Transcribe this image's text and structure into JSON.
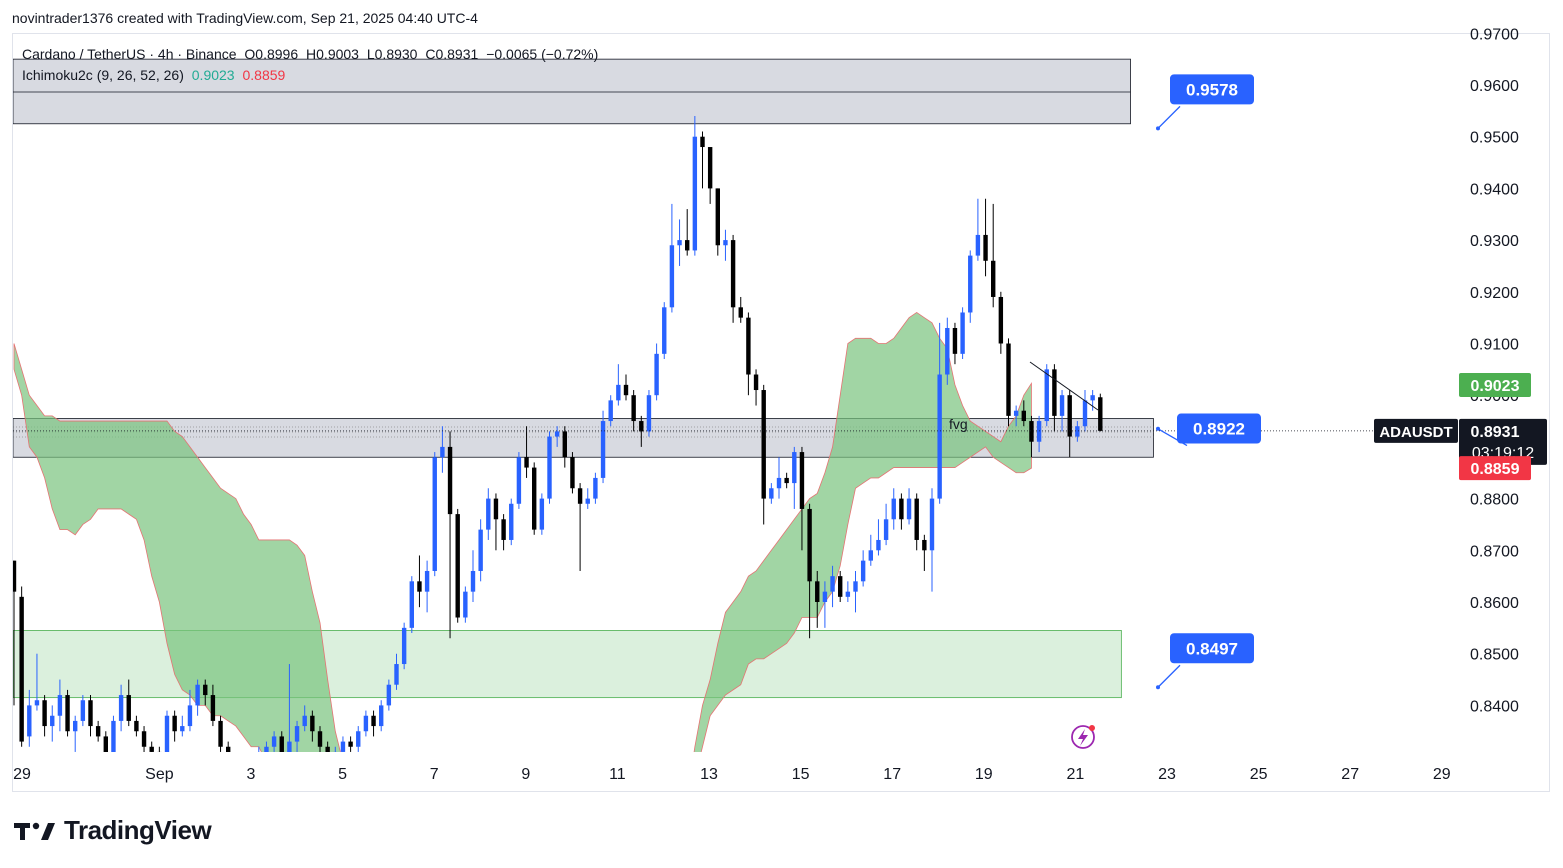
{
  "header": {
    "attribution": "novintrader1376 created with TradingView.com, Sep 21, 2025 04:40 UTC-4"
  },
  "legend": {
    "symbol": "Cardano / TetherUS · 4h · Binance",
    "open": "O0.8996",
    "high": "H0.9003",
    "low": "L0.8930",
    "close": "C0.8931",
    "change": "−0.0065 (−0.72%)",
    "indicator_name": "Ichimoku2c (9, 26, 52, 26)",
    "indicator_val1": "0.9023",
    "indicator_val2": "0.8859"
  },
  "footer": {
    "brand": "TradingView"
  },
  "colors": {
    "up": "#2962ff",
    "down": "#000000",
    "cloud": "#79c37d",
    "zone_gray": "#d1d4dc",
    "zone_green": "#d7eed9",
    "label_blue": "#2962ff",
    "badge_green": "#4caf50",
    "badge_red": "#f23645"
  },
  "chart_data": {
    "type": "candlestick",
    "symbol": "ADAUSDT",
    "timeframe": "4h",
    "y_ticks": [
      "0.9700",
      "0.9600",
      "0.9500",
      "0.9400",
      "0.9300",
      "0.9200",
      "0.9100",
      "0.9000",
      "0.8800",
      "0.8700",
      "0.8600",
      "0.8500",
      "0.8400"
    ],
    "x_ticks": [
      {
        "label": "29",
        "day": 0
      },
      {
        "label": "Sep",
        "day": 3
      },
      {
        "label": "3",
        "day": 5
      },
      {
        "label": "5",
        "day": 7
      },
      {
        "label": "7",
        "day": 9
      },
      {
        "label": "9",
        "day": 11
      },
      {
        "label": "11",
        "day": 13
      },
      {
        "label": "13",
        "day": 15
      },
      {
        "label": "15",
        "day": 17
      },
      {
        "label": "17",
        "day": 19
      },
      {
        "label": "19",
        "day": 21
      },
      {
        "label": "21",
        "day": 23
      },
      {
        "label": "23",
        "day": 25
      },
      {
        "label": "25",
        "day": 27
      },
      {
        "label": "27",
        "day": 29
      },
      {
        "label": "29",
        "day": 31
      }
    ],
    "last_price": "0.8931",
    "countdown": "03:19:12",
    "ichimoku_a": "0.9023",
    "ichimoku_b": "0.8859",
    "levels": [
      {
        "label": "0.9578",
        "price": 0.9578
      },
      {
        "label": "0.8922",
        "price": 0.8922
      },
      {
        "label": "0.8497",
        "price": 0.8497
      }
    ],
    "zones": [
      {
        "kind": "supply",
        "top": 0.965,
        "bottom": 0.9525,
        "end_day": 24.4
      },
      {
        "kind": "fvg",
        "top": 0.8955,
        "bottom": 0.888,
        "end_day": 24.9
      },
      {
        "kind": "demand",
        "top": 0.8545,
        "bottom": 0.8415,
        "end_day": 24.2
      }
    ],
    "fvg_label": "fvg",
    "candles": [
      [
        0.868,
        0.862,
        0.868,
        0.84
      ],
      [
        0.861,
        0.833,
        0.863,
        0.832
      ],
      [
        0.834,
        0.84,
        0.843,
        0.832
      ],
      [
        0.84,
        0.841,
        0.85,
        0.839
      ],
      [
        0.841,
        0.836,
        0.842,
        0.834
      ],
      [
        0.836,
        0.838,
        0.84,
        0.833
      ],
      [
        0.838,
        0.842,
        0.845,
        0.835
      ],
      [
        0.842,
        0.835,
        0.843,
        0.834
      ],
      [
        0.835,
        0.837,
        0.838,
        0.831
      ],
      [
        0.837,
        0.841,
        0.842,
        0.836
      ],
      [
        0.841,
        0.836,
        0.842,
        0.834
      ],
      [
        0.836,
        0.834,
        0.837,
        0.833
      ],
      [
        0.834,
        0.83,
        0.835,
        0.828
      ],
      [
        0.83,
        0.837,
        0.838,
        0.829
      ],
      [
        0.837,
        0.842,
        0.844,
        0.835
      ],
      [
        0.842,
        0.837,
        0.845,
        0.836
      ],
      [
        0.837,
        0.835,
        0.838,
        0.834
      ],
      [
        0.835,
        0.832,
        0.836,
        0.83
      ],
      [
        0.832,
        0.831,
        0.833,
        0.829
      ],
      [
        0.831,
        0.83,
        0.832,
        0.828
      ],
      [
        0.83,
        0.838,
        0.839,
        0.829
      ],
      [
        0.838,
        0.835,
        0.839,
        0.833
      ],
      [
        0.835,
        0.836,
        0.838,
        0.834
      ],
      [
        0.836,
        0.84,
        0.843,
        0.835
      ],
      [
        0.84,
        0.844,
        0.845,
        0.838
      ],
      [
        0.844,
        0.842,
        0.845,
        0.84
      ],
      [
        0.842,
        0.837,
        0.844,
        0.836
      ],
      [
        0.837,
        0.832,
        0.838,
        0.831
      ],
      [
        0.832,
        0.828,
        0.833,
        0.827
      ],
      [
        0.828,
        0.826,
        0.829,
        0.825
      ],
      [
        0.826,
        0.824,
        0.827,
        0.823
      ],
      [
        0.824,
        0.826,
        0.827,
        0.823
      ],
      [
        0.826,
        0.83,
        0.832,
        0.825
      ],
      [
        0.83,
        0.832,
        0.833,
        0.829
      ],
      [
        0.832,
        0.834,
        0.835,
        0.831
      ],
      [
        0.834,
        0.83,
        0.835,
        0.829
      ],
      [
        0.83,
        0.833,
        0.848,
        0.829
      ],
      [
        0.833,
        0.836,
        0.837,
        0.831
      ],
      [
        0.836,
        0.838,
        0.84,
        0.835
      ],
      [
        0.838,
        0.835,
        0.839,
        0.833
      ],
      [
        0.835,
        0.832,
        0.836,
        0.83
      ],
      [
        0.832,
        0.83,
        0.833,
        0.828
      ],
      [
        0.83,
        0.831,
        0.832,
        0.828
      ],
      [
        0.831,
        0.833,
        0.834,
        0.83
      ],
      [
        0.833,
        0.832,
        0.834,
        0.831
      ],
      [
        0.832,
        0.835,
        0.836,
        0.831
      ],
      [
        0.835,
        0.838,
        0.839,
        0.834
      ],
      [
        0.838,
        0.836,
        0.839,
        0.834
      ],
      [
        0.836,
        0.84,
        0.841,
        0.835
      ],
      [
        0.84,
        0.844,
        0.845,
        0.839
      ],
      [
        0.844,
        0.848,
        0.85,
        0.843
      ],
      [
        0.848,
        0.855,
        0.856,
        0.847
      ],
      [
        0.855,
        0.864,
        0.865,
        0.854
      ],
      [
        0.864,
        0.862,
        0.869,
        0.859
      ],
      [
        0.862,
        0.866,
        0.868,
        0.858
      ],
      [
        0.866,
        0.888,
        0.889,
        0.865
      ],
      [
        0.888,
        0.89,
        0.894,
        0.885
      ],
      [
        0.89,
        0.877,
        0.893,
        0.853
      ],
      [
        0.877,
        0.857,
        0.878,
        0.856
      ],
      [
        0.857,
        0.862,
        0.863,
        0.856
      ],
      [
        0.862,
        0.866,
        0.87,
        0.86
      ],
      [
        0.866,
        0.874,
        0.876,
        0.864
      ],
      [
        0.874,
        0.88,
        0.882,
        0.872
      ],
      [
        0.88,
        0.876,
        0.881,
        0.87
      ],
      [
        0.876,
        0.872,
        0.877,
        0.87
      ],
      [
        0.872,
        0.879,
        0.88,
        0.871
      ],
      [
        0.879,
        0.888,
        0.889,
        0.878
      ],
      [
        0.888,
        0.886,
        0.894,
        0.884
      ],
      [
        0.886,
        0.874,
        0.887,
        0.873
      ],
      [
        0.874,
        0.88,
        0.881,
        0.873
      ],
      [
        0.88,
        0.892,
        0.893,
        0.879
      ],
      [
        0.892,
        0.893,
        0.894,
        0.89
      ],
      [
        0.893,
        0.888,
        0.894,
        0.886
      ],
      [
        0.888,
        0.882,
        0.889,
        0.881
      ],
      [
        0.882,
        0.879,
        0.883,
        0.866
      ],
      [
        0.879,
        0.88,
        0.882,
        0.878
      ],
      [
        0.88,
        0.884,
        0.885,
        0.879
      ],
      [
        0.884,
        0.895,
        0.897,
        0.883
      ],
      [
        0.895,
        0.899,
        0.9,
        0.894
      ],
      [
        0.899,
        0.902,
        0.906,
        0.898
      ],
      [
        0.902,
        0.9,
        0.904,
        0.899
      ],
      [
        0.9,
        0.895,
        0.901,
        0.893
      ],
      [
        0.895,
        0.893,
        0.896,
        0.89
      ],
      [
        0.893,
        0.9,
        0.901,
        0.892
      ],
      [
        0.9,
        0.908,
        0.91,
        0.899
      ],
      [
        0.908,
        0.917,
        0.918,
        0.907
      ],
      [
        0.917,
        0.929,
        0.937,
        0.916
      ],
      [
        0.929,
        0.93,
        0.934,
        0.925
      ],
      [
        0.93,
        0.928,
        0.936,
        0.927
      ],
      [
        0.928,
        0.95,
        0.954,
        0.927
      ],
      [
        0.95,
        0.948,
        0.951,
        0.94
      ],
      [
        0.948,
        0.94,
        0.942,
        0.937
      ],
      [
        0.94,
        0.929,
        0.94,
        0.927
      ],
      [
        0.929,
        0.93,
        0.932,
        0.926
      ],
      [
        0.93,
        0.917,
        0.931,
        0.914
      ],
      [
        0.917,
        0.915,
        0.919,
        0.914
      ],
      [
        0.915,
        0.904,
        0.916,
        0.9
      ],
      [
        0.904,
        0.901,
        0.905,
        0.898
      ],
      [
        0.901,
        0.88,
        0.902,
        0.875
      ],
      [
        0.88,
        0.882,
        0.883,
        0.879
      ],
      [
        0.882,
        0.884,
        0.888,
        0.88
      ],
      [
        0.884,
        0.883,
        0.885,
        0.882
      ],
      [
        0.883,
        0.889,
        0.89,
        0.878
      ],
      [
        0.889,
        0.878,
        0.89,
        0.87
      ],
      [
        0.878,
        0.864,
        0.879,
        0.853
      ],
      [
        0.864,
        0.86,
        0.866,
        0.855
      ],
      [
        0.86,
        0.862,
        0.864,
        0.855
      ],
      [
        0.862,
        0.865,
        0.867,
        0.859
      ],
      [
        0.865,
        0.861,
        0.866,
        0.86
      ],
      [
        0.861,
        0.862,
        0.864,
        0.86
      ],
      [
        0.862,
        0.864,
        0.866,
        0.858
      ],
      [
        0.864,
        0.868,
        0.87,
        0.863
      ],
      [
        0.868,
        0.87,
        0.873,
        0.867
      ],
      [
        0.87,
        0.872,
        0.876,
        0.869
      ],
      [
        0.872,
        0.876,
        0.879,
        0.871
      ],
      [
        0.876,
        0.88,
        0.882,
        0.874
      ],
      [
        0.88,
        0.876,
        0.881,
        0.874
      ],
      [
        0.876,
        0.88,
        0.882,
        0.875
      ],
      [
        0.88,
        0.872,
        0.881,
        0.87
      ],
      [
        0.872,
        0.87,
        0.873,
        0.866
      ],
      [
        0.87,
        0.88,
        0.882,
        0.862
      ],
      [
        0.88,
        0.904,
        0.914,
        0.879
      ],
      [
        0.904,
        0.913,
        0.915,
        0.902
      ],
      [
        0.913,
        0.908,
        0.914,
        0.906
      ],
      [
        0.908,
        0.916,
        0.917,
        0.907
      ],
      [
        0.916,
        0.927,
        0.928,
        0.914
      ],
      [
        0.927,
        0.931,
        0.938,
        0.926
      ],
      [
        0.931,
        0.926,
        0.938,
        0.923
      ],
      [
        0.926,
        0.919,
        0.937,
        0.917
      ],
      [
        0.919,
        0.91,
        0.92,
        0.908
      ],
      [
        0.91,
        0.896,
        0.911,
        0.894
      ],
      [
        0.896,
        0.897,
        0.898,
        0.894
      ],
      [
        0.897,
        0.895,
        0.899,
        0.894
      ],
      [
        0.895,
        0.891,
        0.896,
        0.888
      ],
      [
        0.891,
        0.895,
        0.896,
        0.889
      ],
      [
        0.895,
        0.905,
        0.906,
        0.894
      ],
      [
        0.905,
        0.896,
        0.906,
        0.893
      ],
      [
        0.896,
        0.9,
        0.901,
        0.893
      ],
      [
        0.9,
        0.892,
        0.901,
        0.888
      ],
      [
        0.892,
        0.894,
        0.895,
        0.891
      ],
      [
        0.894,
        0.899,
        0.901,
        0.893
      ],
      [
        0.899,
        0.9,
        0.901,
        0.897
      ],
      [
        0.8996,
        0.8931,
        0.9003,
        0.893
      ]
    ],
    "cloud": [
      [
        0.91,
        0.905
      ],
      [
        0.905,
        0.9
      ],
      [
        0.9,
        0.89
      ],
      [
        0.898,
        0.888
      ],
      [
        0.896,
        0.884
      ],
      [
        0.896,
        0.878
      ],
      [
        0.895,
        0.874
      ],
      [
        0.895,
        0.874
      ],
      [
        0.895,
        0.873
      ],
      [
        0.895,
        0.875
      ],
      [
        0.895,
        0.876
      ],
      [
        0.895,
        0.878
      ],
      [
        0.895,
        0.878
      ],
      [
        0.895,
        0.878
      ],
      [
        0.895,
        0.878
      ],
      [
        0.895,
        0.877
      ],
      [
        0.895,
        0.876
      ],
      [
        0.895,
        0.872
      ],
      [
        0.895,
        0.865
      ],
      [
        0.895,
        0.86
      ],
      [
        0.895,
        0.852
      ],
      [
        0.893,
        0.846
      ],
      [
        0.892,
        0.843
      ],
      [
        0.89,
        0.842
      ],
      [
        0.888,
        0.84
      ],
      [
        0.886,
        0.84
      ],
      [
        0.884,
        0.838
      ],
      [
        0.882,
        0.838
      ],
      [
        0.881,
        0.837
      ],
      [
        0.88,
        0.836
      ],
      [
        0.877,
        0.834
      ],
      [
        0.875,
        0.832
      ],
      [
        0.872,
        0.832
      ],
      [
        0.872,
        0.829
      ],
      [
        0.872,
        0.828
      ],
      [
        0.872,
        0.828
      ],
      [
        0.872,
        0.826
      ],
      [
        0.871,
        0.826
      ],
      [
        0.869,
        0.826
      ],
      [
        0.862,
        0.826
      ],
      [
        0.856,
        0.826
      ],
      [
        0.845,
        0.826
      ],
      [
        0.835,
        0.826
      ],
      [
        0.829,
        0.826
      ],
      [
        0.827,
        0.826
      ],
      [
        0.826,
        0.826
      ]
    ],
    "cloud2": [
      [
        0.822,
        0.823
      ],
      [
        0.832,
        0.826
      ],
      [
        0.84,
        0.832
      ],
      [
        0.845,
        0.838
      ],
      [
        0.852,
        0.84
      ],
      [
        0.858,
        0.842
      ],
      [
        0.86,
        0.843
      ],
      [
        0.862,
        0.844
      ],
      [
        0.865,
        0.848
      ],
      [
        0.866,
        0.849
      ],
      [
        0.868,
        0.849
      ],
      [
        0.87,
        0.85
      ],
      [
        0.872,
        0.851
      ],
      [
        0.874,
        0.852
      ],
      [
        0.876,
        0.854
      ],
      [
        0.878,
        0.857
      ],
      [
        0.88,
        0.857
      ],
      [
        0.881,
        0.857
      ],
      [
        0.885,
        0.86
      ],
      [
        0.89,
        0.862
      ],
      [
        0.9,
        0.867
      ],
      [
        0.91,
        0.875
      ],
      [
        0.911,
        0.882
      ],
      [
        0.911,
        0.883
      ],
      [
        0.911,
        0.884
      ],
      [
        0.91,
        0.884
      ],
      [
        0.91,
        0.885
      ],
      [
        0.911,
        0.886
      ],
      [
        0.913,
        0.886
      ],
      [
        0.915,
        0.886
      ],
      [
        0.916,
        0.886
      ],
      [
        0.915,
        0.886
      ],
      [
        0.914,
        0.886
      ],
      [
        0.911,
        0.886
      ],
      [
        0.909,
        0.886
      ],
      [
        0.902,
        0.886
      ],
      [
        0.898,
        0.887
      ],
      [
        0.895,
        0.888
      ],
      [
        0.894,
        0.889
      ],
      [
        0.893,
        0.89
      ],
      [
        0.892,
        0.888
      ],
      [
        0.891,
        0.887
      ],
      [
        0.894,
        0.886
      ],
      [
        0.896,
        0.885
      ],
      [
        0.9,
        0.885
      ],
      [
        0.9023,
        0.8859
      ]
    ]
  }
}
